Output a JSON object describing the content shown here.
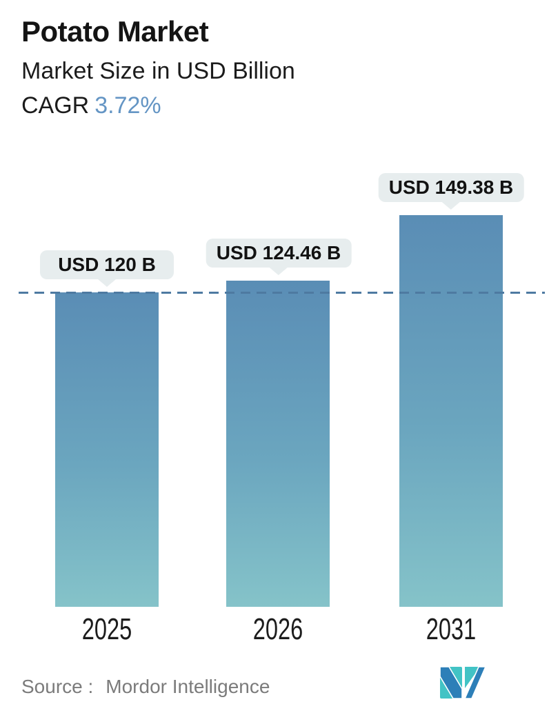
{
  "header": {
    "title": "Potato Market",
    "subtitle": "Market Size in USD Billion",
    "cagr_label": "CAGR",
    "cagr_value": "3.72%",
    "cagr_value_color": "#6495c4"
  },
  "chart_data": {
    "type": "bar",
    "title": "Potato Market",
    "subtitle": "Market Size in USD Billion",
    "cagr_percent": 3.72,
    "categories": [
      "2025",
      "2026",
      "2031"
    ],
    "values": [
      120,
      124.46,
      149.38
    ],
    "value_labels": [
      "USD 120 B",
      "USD 124.46 B",
      "USD 149.38 B"
    ],
    "unit": "USD Billion",
    "xlabel": "",
    "ylabel": "Market Size (USD Billion)",
    "y_baseline": 0,
    "reference_line_value": 120,
    "reference_line_style": "dashed",
    "grid": false,
    "legend": false,
    "colors": {
      "bar_gradient_top": "#5a8db5",
      "bar_gradient_bottom": "#85c3c9",
      "dashed_line": "#4e7aa1",
      "callout_background": "#e7edee",
      "callout_text": "#121212"
    }
  },
  "footer": {
    "source_label": "Source :",
    "source_name": "Mordor Intelligence",
    "logo": {
      "name": "mordor-intelligence-logo",
      "teal": "#42c3c5",
      "blue": "#2d7fb8"
    }
  }
}
